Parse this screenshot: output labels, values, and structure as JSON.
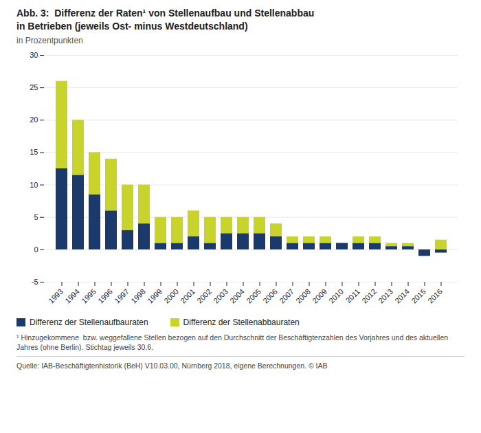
{
  "chart_data": {
    "type": "bar",
    "title": "Abb. 3:  Differenz der Raten¹ von Stellenaufbau und Stellenabbau\nin Betrieben (jeweils Ost- minus Westdeutschland)",
    "subtitle": "in Prozentpunkten",
    "categories": [
      "1993",
      "1994",
      "1995",
      "1996",
      "1997",
      "1998",
      "1999",
      "2000",
      "2001",
      "2002",
      "2003",
      "2004",
      "2005",
      "2006",
      "2007",
      "2008",
      "2009",
      "2010",
      "2011",
      "2012",
      "2013",
      "2014",
      "2015",
      "2016"
    ],
    "series": [
      {
        "name": "Differenz der Stellenaufbauraten",
        "color": "#1a3a6b",
        "values": [
          12.5,
          11.5,
          8.5,
          6.0,
          3.0,
          4.0,
          1.0,
          1.0,
          2.0,
          1.0,
          2.5,
          2.5,
          2.5,
          2.0,
          1.0,
          1.0,
          1.0,
          1.0,
          1.0,
          1.0,
          0.5,
          0.5,
          -1.0,
          -0.5
        ]
      },
      {
        "name": "Differenz der Stellenabbauraten",
        "color": "#c8d42a",
        "values": [
          13.5,
          8.5,
          6.5,
          8.0,
          7.0,
          6.0,
          4.0,
          4.0,
          4.0,
          4.0,
          2.5,
          2.5,
          2.5,
          2.0,
          1.0,
          1.0,
          1.0,
          0.0,
          1.0,
          1.0,
          0.5,
          0.5,
          0.0,
          1.5
        ]
      }
    ],
    "stacked": true,
    "ylim": [
      -5,
      30
    ],
    "yticks": [
      -5,
      0,
      5,
      10,
      15,
      20,
      25,
      30
    ],
    "grid": true,
    "legend": "bottom",
    "annotations": [
      "¹ Hinzugekommene  bzw. weggefallene Stellen bezogen auf den Durchschnitt der Beschäftigtenzahlen des Vorjahres und des aktuellen Jahres (ohne Berlin). Stichtag jeweils 30.6.",
      "Quelle: IAB-Beschäftigtenhistorik (BeH) V10.03.00, Nürnberg 2018, eigene Berechnungen. © IAB"
    ]
  }
}
